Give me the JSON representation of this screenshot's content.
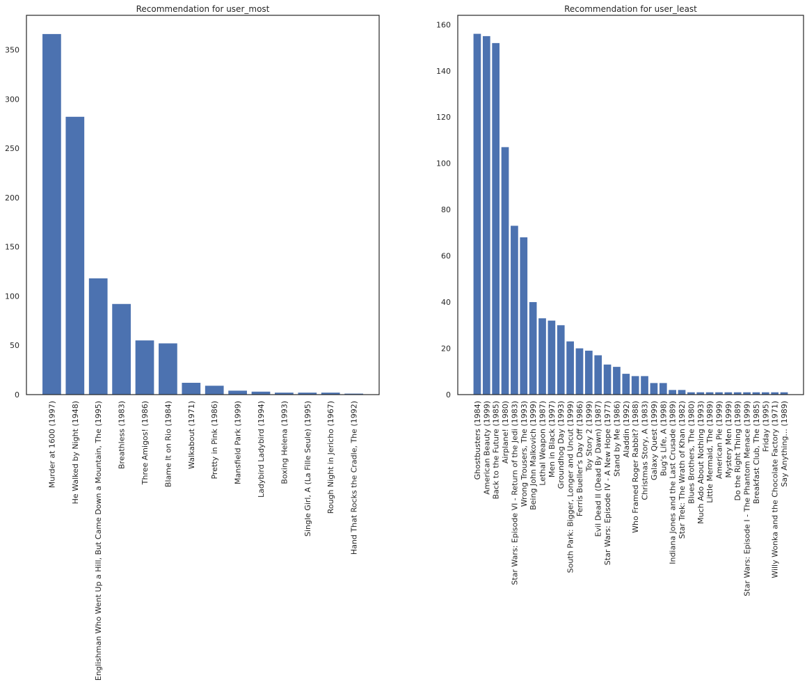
{
  "chart_data": [
    {
      "type": "bar",
      "title": "Recommendation for user_most",
      "xlabel": "",
      "ylabel": "",
      "ylim": [
        0,
        385
      ],
      "yticks": [
        0,
        50,
        100,
        150,
        200,
        250,
        300,
        350
      ],
      "grid": false,
      "color": "#4c72b0",
      "categories": [
        "Murder at 1600 (1997)",
        "He Walked by Night (1948)",
        "Englishman Who Went Up a Hill, But Came Down a Mountain, The (1995)",
        "Breathless (1983)",
        "Three Amigos! (1986)",
        "Blame It on Rio (1984)",
        "Walkabout (1971)",
        "Pretty in Pink (1986)",
        "Mansfield Park (1999)",
        "Ladybird Ladybird (1994)",
        "Boxing Helena (1993)",
        "Single Girl, A (La Fille Seule) (1995)",
        "Rough Night in Jericho (1967)",
        "Hand That Rocks the Cradle, The (1992)"
      ],
      "values": [
        366,
        282,
        118,
        92,
        55,
        52,
        12,
        9,
        4,
        3,
        2,
        2,
        2,
        1
      ]
    },
    {
      "type": "bar",
      "title": "Recommendation for user_least",
      "xlabel": "",
      "ylabel": "",
      "ylim": [
        0,
        164
      ],
      "yticks": [
        0,
        20,
        40,
        60,
        80,
        100,
        120,
        140,
        160
      ],
      "grid": false,
      "color": "#4c72b0",
      "categories": [
        "Ghostbusters (1984)",
        "American Beauty (1999)",
        "Back to the Future (1985)",
        "Airplane! (1980)",
        "Star Wars: Episode VI - Return of the Jedi (1983)",
        "Wrong Trousers, The (1993)",
        "Being John Malkovich (1999)",
        "Lethal Weapon (1987)",
        "Men in Black (1997)",
        "Groundhog Day (1993)",
        "South Park: Bigger, Longer and Uncut (1999)",
        "Ferris Bueller's Day Off (1986)",
        "Toy Story 2 (1999)",
        "Evil Dead II (Dead By Dawn) (1987)",
        "Star Wars: Episode IV - A New Hope (1977)",
        "Stand by Me (1986)",
        "Aladdin (1992)",
        "Who Framed Roger Rabbit? (1988)",
        "Christmas Story, A (1983)",
        "Galaxy Quest (1999)",
        "Bug's Life, A (1998)",
        "Indiana Jones and the Last Crusade (1989)",
        "Star Trek: The Wrath of Khan (1982)",
        "Blues Brothers, The (1980)",
        "Much Ado About Nothing (1993)",
        "Little Mermaid, The (1989)",
        "American Pie (1999)",
        "Mystery Men (1999)",
        "Do the Right Thing (1989)",
        "Star Wars: Episode I - The Phantom Menace (1999)",
        "Breakfast Club, The (1985)",
        "Friday (1995)",
        "Willy Wonka and the Chocolate Factory (1971)",
        "Say Anything... (1989)"
      ],
      "values": [
        156,
        155,
        152,
        107,
        73,
        68,
        40,
        33,
        32,
        30,
        23,
        20,
        19,
        17,
        13,
        12,
        9,
        8,
        8,
        5,
        5,
        2,
        2,
        1,
        1,
        1,
        1,
        1,
        1,
        1,
        1,
        1,
        1,
        1
      ]
    }
  ]
}
